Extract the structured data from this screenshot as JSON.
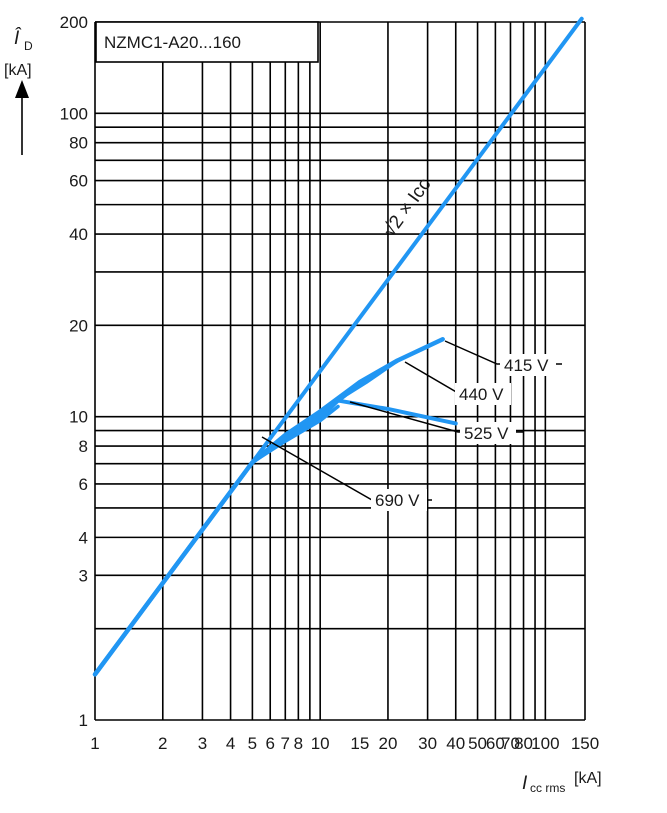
{
  "chart_data": {
    "type": "line",
    "title": "NZMC1-A20...160",
    "xscale": "log",
    "yscale": "log",
    "xlim": [
      1,
      150
    ],
    "ylim": [
      1,
      200
    ],
    "grid": true,
    "xlabel": {
      "symbol": "I",
      "subscript": "cc rms",
      "unit": "[kA]"
    },
    "ylabel": {
      "symbol": "Î",
      "subscript": "D",
      "unit": "[kA]"
    },
    "xtick_labels": [
      "1",
      "2",
      "3",
      "4",
      "5",
      "6",
      "7",
      "8",
      "10",
      "15",
      "20",
      "30",
      "40",
      "50",
      "60",
      "70",
      "80",
      "100",
      "150"
    ],
    "ytick_labels": [
      "1",
      "3",
      "4",
      "6",
      "8",
      "10",
      "20",
      "40",
      "60",
      "80",
      "100",
      "200"
    ],
    "series": [
      {
        "name": "√2 × Icc",
        "x": [
          1,
          145
        ],
        "y": [
          1.414,
          205
        ]
      },
      {
        "name": "415 V",
        "x": [
          1,
          5,
          7,
          10,
          15,
          22,
          35
        ],
        "y": [
          1.414,
          7.07,
          8.7,
          10.4,
          13.0,
          15.3,
          18.0
        ]
      },
      {
        "name": "440 V",
        "x": [
          1,
          5,
          7,
          10,
          13,
          16,
          22
        ],
        "y": [
          1.414,
          7.07,
          8.5,
          10.2,
          11.8,
          13.0,
          15.3
        ]
      },
      {
        "name": "525 V",
        "x": [
          1,
          5,
          7,
          10,
          12,
          20,
          40
        ],
        "y": [
          1.414,
          7.07,
          8.4,
          9.9,
          11.3,
          10.6,
          9.5
        ]
      },
      {
        "name": "690 V",
        "x": [
          1,
          5,
          7,
          10,
          12
        ],
        "y": [
          1.414,
          7.07,
          8.3,
          9.7,
          10.8
        ]
      }
    ],
    "annotations": [
      {
        "label": "415 V",
        "target_series": "415 V"
      },
      {
        "label": "440 V",
        "target_series": "440 V"
      },
      {
        "label": "525 V",
        "target_series": "525 V"
      },
      {
        "label": "690 V",
        "target_series": "690 V"
      }
    ],
    "colors": {
      "curve": "#2196f3",
      "grid": "#000000"
    }
  }
}
